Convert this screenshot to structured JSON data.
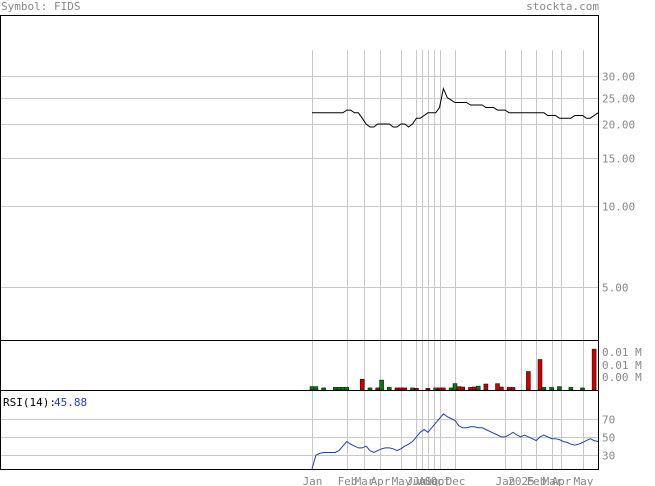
{
  "header": {
    "symbol_label": "Symbol: FIDS",
    "site": "stockta.com"
  },
  "colors": {
    "frame": "#000000",
    "grid": "#c8c8c8",
    "label": "#888888",
    "price": "#000000",
    "vol_up": "#008000",
    "vol_down": "#cc0000",
    "rsi_line": "#1f3fbf",
    "rsi_value": "#1f3fbf"
  },
  "chart_data": [
    {
      "type": "line",
      "panel": "price",
      "scale": "log",
      "ylim": [
        3.2,
        50
      ],
      "y_ticks": [
        30,
        25,
        20,
        15,
        10,
        5
      ],
      "y_tick_labels": [
        "30.00",
        "25.00",
        "20.00",
        "15.00",
        "10.00",
        "5.00"
      ],
      "x_ticks": [
        {
          "label": "Jan",
          "x": 0
        },
        {
          "label": "Feb",
          "x": 9
        },
        {
          "label": "Mar",
          "x": 13.5
        },
        {
          "label": "Apr",
          "x": 17.5
        },
        {
          "label": "May",
          "x": 23
        },
        {
          "label": "Jun",
          "x": 27
        },
        {
          "label": "Jul",
          "x": 28.5
        },
        {
          "label": "Aug",
          "x": 30
        },
        {
          "label": "Sep",
          "x": 31.5
        },
        {
          "label": "Oct",
          "x": 33
        },
        {
          "label": "Dec",
          "x": 37
        },
        {
          "label": "Jan",
          "x": 50
        },
        {
          "label": "2025",
          "x": 54
        },
        {
          "label": "Feb",
          "x": 58
        },
        {
          "label": "Mar",
          "x": 62
        },
        {
          "label": "Apr",
          "x": 64.5
        },
        {
          "label": "May",
          "x": 70
        }
      ],
      "xlim": [
        0,
        74
      ],
      "series": [
        {
          "values": [
            22,
            22,
            22,
            22,
            22,
            22,
            22,
            22,
            22,
            22.5,
            22.5,
            22,
            22,
            21,
            20,
            19.5,
            19.5,
            20,
            20,
            20,
            20,
            19.5,
            19.5,
            20,
            20,
            19.5,
            20,
            21,
            21,
            21.5,
            22,
            22,
            22,
            23,
            27,
            25,
            24.5,
            24,
            24,
            24,
            24,
            23.5,
            23.5,
            23.5,
            23.5,
            23,
            23,
            23,
            22.5,
            22.5,
            22.5,
            22,
            22,
            22,
            22,
            22,
            22,
            22,
            22,
            22,
            22,
            21.5,
            21.5,
            21.5,
            21,
            21,
            21,
            21,
            21.5,
            21.5,
            21.5,
            21,
            21,
            21.5,
            22
          ]
        }
      ]
    },
    {
      "type": "bar",
      "panel": "volume",
      "y_tick_labels": [
        "0.01 M",
        "0.01 M",
        "0.00 M"
      ],
      "xlim": [
        0,
        74
      ],
      "bars": [
        {
          "x": 0,
          "v": 0.08,
          "dir": "up"
        },
        {
          "x": 1,
          "v": 0.08,
          "dir": "up"
        },
        {
          "x": 3,
          "v": 0.05,
          "dir": "up"
        },
        {
          "x": 6,
          "v": 0.06,
          "dir": "up"
        },
        {
          "x": 7,
          "v": 0.06,
          "dir": "up"
        },
        {
          "x": 8,
          "v": 0.06,
          "dir": "up"
        },
        {
          "x": 9,
          "v": 0.06,
          "dir": "up"
        },
        {
          "x": 13,
          "v": 0.25,
          "dir": "down"
        },
        {
          "x": 15,
          "v": 0.05,
          "dir": "up"
        },
        {
          "x": 17,
          "v": 0.05,
          "dir": "down"
        },
        {
          "x": 18,
          "v": 0.23,
          "dir": "up"
        },
        {
          "x": 20,
          "v": 0.06,
          "dir": "up"
        },
        {
          "x": 22,
          "v": 0.05,
          "dir": "down"
        },
        {
          "x": 23,
          "v": 0.05,
          "dir": "down"
        },
        {
          "x": 24,
          "v": 0.05,
          "dir": "down"
        },
        {
          "x": 26,
          "v": 0.05,
          "dir": "up"
        },
        {
          "x": 27,
          "v": 0.04,
          "dir": "down"
        },
        {
          "x": 30,
          "v": 0.04,
          "dir": "down"
        },
        {
          "x": 32,
          "v": 0.05,
          "dir": "up"
        },
        {
          "x": 33,
          "v": 0.05,
          "dir": "down"
        },
        {
          "x": 34,
          "v": 0.05,
          "dir": "down"
        },
        {
          "x": 36,
          "v": 0.05,
          "dir": "up"
        },
        {
          "x": 37,
          "v": 0.15,
          "dir": "up"
        },
        {
          "x": 38,
          "v": 0.08,
          "dir": "down"
        },
        {
          "x": 39,
          "v": 0.07,
          "dir": "down"
        },
        {
          "x": 41,
          "v": 0.06,
          "dir": "down"
        },
        {
          "x": 42,
          "v": 0.07,
          "dir": "down"
        },
        {
          "x": 43,
          "v": 0.09,
          "dir": "up"
        },
        {
          "x": 45,
          "v": 0.14,
          "dir": "down"
        },
        {
          "x": 48,
          "v": 0.15,
          "dir": "down"
        },
        {
          "x": 49,
          "v": 0.07,
          "dir": "down"
        },
        {
          "x": 51,
          "v": 0.06,
          "dir": "down"
        },
        {
          "x": 52,
          "v": 0.06,
          "dir": "down"
        },
        {
          "x": 56,
          "v": 0.43,
          "dir": "down"
        },
        {
          "x": 59,
          "v": 0.71,
          "dir": "down"
        },
        {
          "x": 60,
          "v": 0.06,
          "dir": "up"
        },
        {
          "x": 62,
          "v": 0.06,
          "dir": "up"
        },
        {
          "x": 64,
          "v": 0.08,
          "dir": "up"
        },
        {
          "x": 67,
          "v": 0.06,
          "dir": "up"
        },
        {
          "x": 70,
          "v": 0.05,
          "dir": "up"
        },
        {
          "x": 73,
          "v": 0.95,
          "dir": "down"
        }
      ]
    },
    {
      "type": "line",
      "panel": "rsi",
      "label": "RSI(14):",
      "value": "45.88",
      "ylim": [
        15,
        100
      ],
      "y_ticks": [
        70,
        50,
        30
      ],
      "y_tick_labels": [
        "70",
        "50",
        "30"
      ],
      "xlim": [
        0,
        74
      ],
      "series": [
        {
          "values": [
            15,
            30,
            32,
            33,
            33,
            33,
            33,
            35,
            40,
            45,
            42,
            40,
            38,
            38,
            40,
            35,
            33,
            35,
            37,
            38,
            38,
            37,
            35,
            37,
            40,
            42,
            45,
            50,
            55,
            58,
            55,
            60,
            65,
            70,
            75,
            72,
            70,
            68,
            62,
            60,
            60,
            61,
            61,
            60,
            60,
            58,
            56,
            54,
            52,
            50,
            50,
            52,
            55,
            52,
            50,
            52,
            50,
            48,
            46,
            50,
            52,
            50,
            48,
            48,
            47,
            45,
            44,
            42,
            41,
            42,
            44,
            46,
            48,
            46,
            45
          ]
        }
      ]
    }
  ]
}
